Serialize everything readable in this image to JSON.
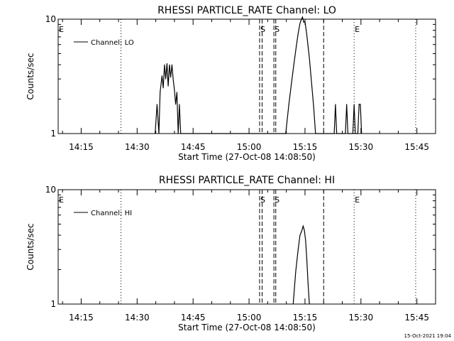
{
  "footer": {
    "timestamp": "15-Oct-2021 19:04"
  },
  "chart_data": [
    {
      "type": "line",
      "title": "RHESSI PARTICLE_RATE Channel: LO",
      "xlabel": "Start Time (27-Oct-08 14:08:50)",
      "ylabel": "Counts/sec",
      "y_scale": "log",
      "ylim": [
        1,
        10
      ],
      "ytick_labels": [
        "1",
        "10"
      ],
      "xlim": [
        "14:08:50",
        "15:50:00"
      ],
      "xtick_labels": [
        "14:15",
        "14:30",
        "14:45",
        "15:00",
        "15:15",
        "15:30",
        "15:45"
      ],
      "legend": {
        "position": "top-left",
        "entries": [
          "Channel: LO"
        ]
      },
      "markers": [
        {
          "time": "14:25:40",
          "style": "dotted",
          "label": ""
        },
        {
          "time": "15:02:50",
          "style": "dashed",
          "label": "S"
        },
        {
          "time": "15:03:30",
          "style": "dashed",
          "label": ""
        },
        {
          "time": "15:06:40",
          "style": "dashed",
          "label": "S"
        },
        {
          "time": "15:07:10",
          "style": "dashed",
          "label": ""
        },
        {
          "time": "15:20:00",
          "style": "dashed",
          "label": ""
        },
        {
          "time": "15:28:10",
          "style": "dotted",
          "label": "E"
        },
        {
          "time": "15:44:40",
          "style": "dotted",
          "label": ""
        }
      ],
      "edge_labels": [
        {
          "time": "14:08:50",
          "label": "E"
        }
      ],
      "series": [
        {
          "name": "Channel: LO",
          "points": [
            [
              "14:34:50",
              1.0
            ],
            [
              "14:35:20",
              1.8
            ],
            [
              "14:35:50",
              1.0
            ],
            [
              "14:36:10",
              2.3
            ],
            [
              "14:36:40",
              3.2
            ],
            [
              "14:37:00",
              2.5
            ],
            [
              "14:37:20",
              4.0
            ],
            [
              "14:37:40",
              3.0
            ],
            [
              "14:38:00",
              4.1
            ],
            [
              "14:38:20",
              2.6
            ],
            [
              "14:38:40",
              4.0
            ],
            [
              "14:39:00",
              3.1
            ],
            [
              "14:39:20",
              4.0
            ],
            [
              "14:39:40",
              3.0
            ],
            [
              "14:40:00",
              2.4
            ],
            [
              "14:40:20",
              1.8
            ],
            [
              "14:40:40",
              2.3
            ],
            [
              "14:41:00",
              1.0
            ],
            [
              "14:41:20",
              1.8
            ],
            [
              "14:41:40",
              1.0
            ],
            [
              "15:09:50",
              1.0
            ],
            [
              "15:10:40",
              1.8
            ],
            [
              "15:11:20",
              2.7
            ],
            [
              "15:12:00",
              4.0
            ],
            [
              "15:12:40",
              5.8
            ],
            [
              "15:13:10",
              7.5
            ],
            [
              "15:13:40",
              9.2
            ],
            [
              "15:14:00",
              9.9
            ],
            [
              "15:14:20",
              10.5
            ],
            [
              "15:14:40",
              9.4
            ],
            [
              "15:15:00",
              9.6
            ],
            [
              "15:15:30",
              7.2
            ],
            [
              "15:16:10",
              4.6
            ],
            [
              "15:16:50",
              2.6
            ],
            [
              "15:17:20",
              1.7
            ],
            [
              "15:17:50",
              1.0
            ],
            [
              "15:22:50",
              1.0
            ],
            [
              "15:23:10",
              1.8
            ],
            [
              "15:23:30",
              1.0
            ],
            [
              "15:25:50",
              1.0
            ],
            [
              "15:26:10",
              1.8
            ],
            [
              "15:26:30",
              1.0
            ],
            [
              "15:27:50",
              1.0
            ],
            [
              "15:28:10",
              1.8
            ],
            [
              "15:28:30",
              1.0
            ],
            [
              "15:29:10",
              1.0
            ],
            [
              "15:29:30",
              1.8
            ],
            [
              "15:29:50",
              1.8
            ],
            [
              "15:30:10",
              1.0
            ]
          ]
        }
      ]
    },
    {
      "type": "line",
      "title": "RHESSI PARTICLE_RATE Channel: HI",
      "xlabel": "Start Time (27-Oct-08 14:08:50)",
      "ylabel": "Counts/sec",
      "y_scale": "log",
      "ylim": [
        1,
        10
      ],
      "ytick_labels": [
        "1",
        "10"
      ],
      "xlim": [
        "14:08:50",
        "15:50:00"
      ],
      "xtick_labels": [
        "14:15",
        "14:30",
        "14:45",
        "15:00",
        "15:15",
        "15:30",
        "15:45"
      ],
      "legend": {
        "position": "top-left",
        "entries": [
          "Channel: HI"
        ]
      },
      "markers": [
        {
          "time": "14:25:40",
          "style": "dotted",
          "label": ""
        },
        {
          "time": "15:02:50",
          "style": "dashed",
          "label": "S"
        },
        {
          "time": "15:03:30",
          "style": "dashed",
          "label": ""
        },
        {
          "time": "15:06:40",
          "style": "dashed",
          "label": "S"
        },
        {
          "time": "15:07:10",
          "style": "dashed",
          "label": ""
        },
        {
          "time": "15:20:00",
          "style": "dashed",
          "label": ""
        },
        {
          "time": "15:28:10",
          "style": "dotted",
          "label": "E"
        },
        {
          "time": "15:44:40",
          "style": "dotted",
          "label": ""
        }
      ],
      "edge_labels": [
        {
          "time": "14:08:50",
          "label": "E"
        }
      ],
      "series": [
        {
          "name": "Channel: HI",
          "points": [
            [
              "15:11:50",
              1.0
            ],
            [
              "15:12:30",
              1.9
            ],
            [
              "15:13:10",
              3.0
            ],
            [
              "15:13:40",
              4.0
            ],
            [
              "15:14:10",
              4.4
            ],
            [
              "15:14:30",
              4.8
            ],
            [
              "15:14:50",
              4.4
            ],
            [
              "15:15:10",
              3.6
            ],
            [
              "15:15:30",
              2.4
            ],
            [
              "15:15:50",
              1.5
            ],
            [
              "15:16:10",
              1.0
            ]
          ]
        }
      ]
    }
  ]
}
